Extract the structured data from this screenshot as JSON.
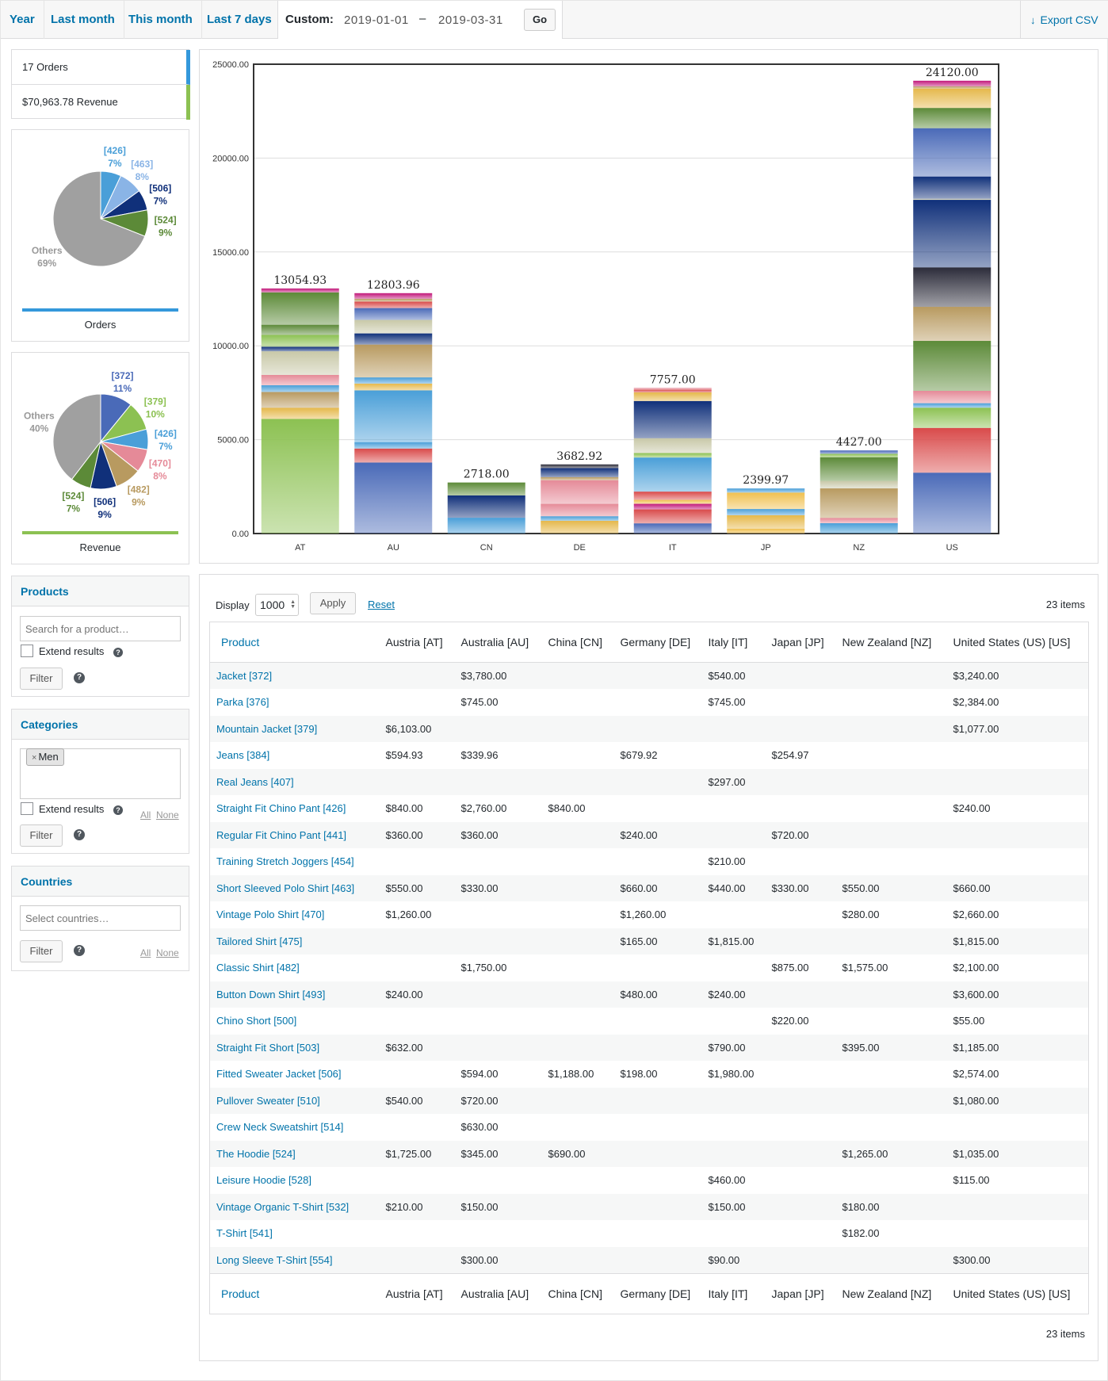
{
  "range_tabs": [
    "Year",
    "Last month",
    "This month",
    "Last 7 days"
  ],
  "custom": {
    "label": "Custom:",
    "from": "2019-01-01",
    "dash": "–",
    "to": "2019-03-31",
    "go_label": "Go"
  },
  "export": {
    "icon": "download-arrow-icon",
    "label": "Export CSV"
  },
  "summary": {
    "orders": "17 Orders",
    "revenue": "$70,963.78 Revenue",
    "orders_color": "#3498db",
    "revenue_color": "#8cc152"
  },
  "orders_pie": {
    "title": "Orders",
    "line_color": "#3498db",
    "slices": [
      {
        "label": "[426]",
        "pct": "7%",
        "value": 7,
        "color": "#4a9fd8"
      },
      {
        "label": "[463]",
        "pct": "8%",
        "value": 8,
        "color": "#8ab4e6"
      },
      {
        "label": "[506]",
        "pct": "7%",
        "value": 7,
        "color": "#10307a"
      },
      {
        "label": "[524]",
        "pct": "9%",
        "value": 9,
        "color": "#5c8a38"
      },
      {
        "label": "Others",
        "pct": "69%",
        "value": 69,
        "color": "#a0a0a0"
      }
    ]
  },
  "revenue_pie": {
    "title": "Revenue",
    "line_color": "#8cc152",
    "slices": [
      {
        "label": "[372]",
        "pct": "11%",
        "value": 11,
        "color": "#4a6ab8"
      },
      {
        "label": "[379]",
        "pct": "10%",
        "value": 10,
        "color": "#8cc152"
      },
      {
        "label": "[426]",
        "pct": "7%",
        "value": 7,
        "color": "#4a9fd8"
      },
      {
        "label": "[470]",
        "pct": "8%",
        "value": 8,
        "color": "#e58a98"
      },
      {
        "label": "[482]",
        "pct": "9%",
        "value": 9,
        "color": "#b89a60"
      },
      {
        "label": "[506]",
        "pct": "9%",
        "value": 9,
        "color": "#10307a"
      },
      {
        "label": "[524]",
        "pct": "7%",
        "value": 7,
        "color": "#5c8a38"
      },
      {
        "label": "Others",
        "pct": "40%",
        "value": 40,
        "color": "#a0a0a0"
      }
    ]
  },
  "panels": {
    "products": {
      "title": "Products",
      "placeholder": "Search for a product…",
      "extend": "Extend results",
      "filter": "Filter"
    },
    "categories": {
      "title": "Categories",
      "token": "Men",
      "token_remove": "×",
      "extend": "Extend results",
      "filter": "Filter",
      "all": "All",
      "none": "None"
    },
    "countries": {
      "title": "Countries",
      "placeholder": "Select countries…",
      "filter": "Filter",
      "all": "All",
      "none": "None"
    }
  },
  "chart_data": {
    "type": "bar",
    "stacked": true,
    "categories": [
      "AT",
      "AU",
      "CN",
      "DE",
      "IT",
      "JP",
      "NZ",
      "US"
    ],
    "totals": [
      13054.93,
      12803.96,
      2718.0,
      3682.92,
      7757.0,
      2399.97,
      4427.0,
      24120.0
    ],
    "total_labels": [
      "13054.93",
      "12803.96",
      "2718.00",
      "3682.92",
      "7757.00",
      "2399.97",
      "4427.00",
      "24120.00"
    ],
    "ylim": [
      0,
      25000
    ],
    "yticks": [
      "0.00",
      "5000.00",
      "10000.00",
      "15000.00",
      "20000.00",
      "25000.00"
    ],
    "grid": true,
    "series_colors": [
      "#4a6ab8",
      "#e5b84a",
      "#d94a4a",
      "#c2187a",
      "#8cc152",
      "#4a9fd8",
      "#b89a60",
      "#10307a",
      "#2c2c3a",
      "#e58a98",
      "#5c8a38",
      "#c8c8a8",
      "#f0c050"
    ],
    "stacks": [
      [
        6103,
        594.93,
        840,
        360,
        550,
        1260,
        240,
        632,
        540,
        1725,
        210
      ],
      [
        3780,
        745,
        339.96,
        2760,
        360,
        330,
        1750,
        594,
        720,
        630,
        345,
        150,
        300
      ],
      [
        840,
        1188,
        690
      ],
      [
        679.92,
        240,
        660,
        1260,
        165,
        480,
        198
      ],
      [
        540,
        745,
        297,
        210,
        440,
        1815,
        240,
        790,
        1980,
        460,
        150,
        90
      ],
      [
        254.97,
        720,
        330,
        875,
        220
      ],
      [
        550,
        280,
        1575,
        395,
        1265,
        180,
        182
      ],
      [
        3240,
        2384,
        1077,
        240,
        660,
        2660,
        1815,
        2100,
        3600,
        55,
        1185,
        2574,
        1080,
        1035,
        115,
        300
      ]
    ],
    "stack_colors": [
      [
        4,
        1,
        6,
        5,
        9,
        11,
        7,
        4,
        10,
        10,
        3
      ],
      [
        0,
        2,
        5,
        5,
        1,
        5,
        6,
        7,
        11,
        0,
        2,
        6,
        3
      ],
      [
        5,
        7,
        10
      ],
      [
        1,
        5,
        9,
        9,
        6,
        7,
        8
      ],
      [
        0,
        2,
        3,
        12,
        2,
        5,
        4,
        11,
        7,
        1,
        2,
        9
      ],
      [
        12,
        1,
        5,
        12,
        5
      ],
      [
        5,
        9,
        6,
        11,
        10,
        4,
        0
      ],
      [
        0,
        2,
        4,
        5,
        9,
        10,
        6,
        8,
        7,
        11,
        7,
        0,
        10,
        1,
        6,
        3
      ]
    ]
  },
  "table": {
    "display_label": "Display",
    "display_value": "1000",
    "apply_label": "Apply",
    "reset_label": "Reset",
    "items_label": "23 items",
    "columns": [
      "Product",
      "Austria [AT]",
      "Australia [AU]",
      "China [CN]",
      "Germany [DE]",
      "Italy [IT]",
      "Japan [JP]",
      "New Zealand [NZ]",
      "United States (US) [US]"
    ],
    "rows": [
      [
        "Jacket [372]",
        "",
        "$3,780.00",
        "",
        "",
        "$540.00",
        "",
        "",
        "$3,240.00"
      ],
      [
        "Parka [376]",
        "",
        "$745.00",
        "",
        "",
        "$745.00",
        "",
        "",
        "$2,384.00"
      ],
      [
        "Mountain Jacket [379]",
        "$6,103.00",
        "",
        "",
        "",
        "",
        "",
        "",
        "$1,077.00"
      ],
      [
        "Jeans [384]",
        "$594.93",
        "$339.96",
        "",
        "$679.92",
        "",
        "$254.97",
        "",
        ""
      ],
      [
        "Real Jeans [407]",
        "",
        "",
        "",
        "",
        "$297.00",
        "",
        "",
        ""
      ],
      [
        "Straight Fit Chino Pant [426]",
        "$840.00",
        "$2,760.00",
        "$840.00",
        "",
        "",
        "",
        "",
        "$240.00"
      ],
      [
        "Regular Fit Chino Pant [441]",
        "$360.00",
        "$360.00",
        "",
        "$240.00",
        "",
        "$720.00",
        "",
        ""
      ],
      [
        "Training Stretch Joggers [454]",
        "",
        "",
        "",
        "",
        "$210.00",
        "",
        "",
        ""
      ],
      [
        "Short Sleeved Polo Shirt [463]",
        "$550.00",
        "$330.00",
        "",
        "$660.00",
        "$440.00",
        "$330.00",
        "$550.00",
        "$660.00"
      ],
      [
        "Vintage Polo Shirt [470]",
        "$1,260.00",
        "",
        "",
        "$1,260.00",
        "",
        "",
        "$280.00",
        "$2,660.00"
      ],
      [
        "Tailored Shirt [475]",
        "",
        "",
        "",
        "$165.00",
        "$1,815.00",
        "",
        "",
        "$1,815.00"
      ],
      [
        "Classic Shirt [482]",
        "",
        "$1,750.00",
        "",
        "",
        "",
        "$875.00",
        "$1,575.00",
        "$2,100.00"
      ],
      [
        "Button Down Shirt [493]",
        "$240.00",
        "",
        "",
        "$480.00",
        "$240.00",
        "",
        "",
        "$3,600.00"
      ],
      [
        "Chino Short [500]",
        "",
        "",
        "",
        "",
        "",
        "$220.00",
        "",
        "$55.00"
      ],
      [
        "Straight Fit Short [503]",
        "$632.00",
        "",
        "",
        "",
        "$790.00",
        "",
        "$395.00",
        "$1,185.00"
      ],
      [
        "Fitted Sweater Jacket [506]",
        "",
        "$594.00",
        "$1,188.00",
        "$198.00",
        "$1,980.00",
        "",
        "",
        "$2,574.00"
      ],
      [
        "Pullover Sweater [510]",
        "$540.00",
        "$720.00",
        "",
        "",
        "",
        "",
        "",
        "$1,080.00"
      ],
      [
        "Crew Neck Sweatshirt [514]",
        "",
        "$630.00",
        "",
        "",
        "",
        "",
        "",
        ""
      ],
      [
        "The Hoodie [524]",
        "$1,725.00",
        "$345.00",
        "$690.00",
        "",
        "",
        "",
        "$1,265.00",
        "$1,035.00"
      ],
      [
        "Leisure Hoodie [528]",
        "",
        "",
        "",
        "",
        "$460.00",
        "",
        "",
        "$115.00"
      ],
      [
        "Vintage Organic T-Shirt [532]",
        "$210.00",
        "$150.00",
        "",
        "",
        "$150.00",
        "",
        "$180.00",
        ""
      ],
      [
        "T-Shirt [541]",
        "",
        "",
        "",
        "",
        "",
        "",
        "$182.00",
        ""
      ],
      [
        "Long Sleeve T-Shirt [554]",
        "",
        "$300.00",
        "",
        "",
        "$90.00",
        "",
        "",
        "$300.00"
      ]
    ]
  }
}
